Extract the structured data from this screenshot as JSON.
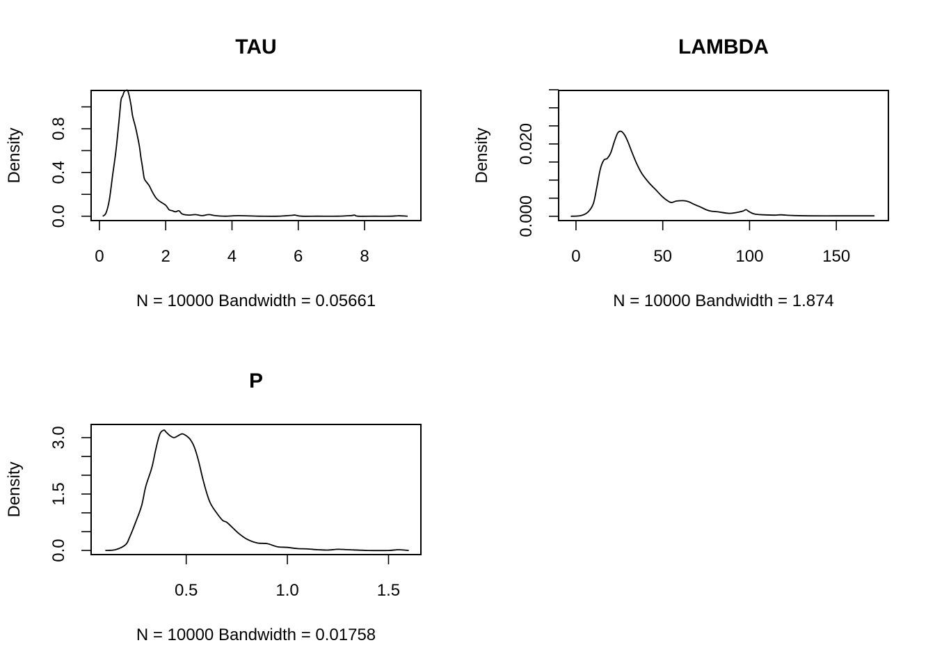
{
  "chart_data": [
    {
      "type": "line",
      "title": "TAU",
      "ylabel": "Density",
      "xlabel": "N = 10000   Bandwidth = 0.05661",
      "xlim": [
        -0.25,
        9.7
      ],
      "ylim": [
        -0.04,
        1.15
      ],
      "x_ticks": [
        0,
        2,
        4,
        6,
        8
      ],
      "x_tick_labels": [
        "0",
        "2",
        "4",
        "6",
        "8"
      ],
      "y_ticks": [
        0,
        0.2,
        0.4,
        0.6,
        0.8,
        1.0
      ],
      "y_tick_labels": [
        "0.0",
        "",
        "0.4",
        "",
        "0.8",
        ""
      ],
      "x_axis_range": [
        0,
        8
      ],
      "y_axis_range": [
        0,
        1.0
      ],
      "series": [
        {
          "x": [
            0.1,
            0.2,
            0.3,
            0.4,
            0.5,
            0.6,
            0.65,
            0.7,
            0.75,
            0.8,
            0.85,
            0.9,
            0.95,
            1.0,
            1.05,
            1.1,
            1.2,
            1.25,
            1.3,
            1.35,
            1.4,
            1.5,
            1.6,
            1.7,
            1.8,
            2.0,
            2.1,
            2.2,
            2.3,
            2.4,
            2.5,
            2.7,
            2.9,
            3.1,
            3.3,
            3.5,
            3.8,
            4.2,
            4.8,
            5.4,
            5.8,
            5.9,
            6.1,
            6.6,
            7.2,
            7.6,
            7.7,
            7.8,
            8.3,
            8.8,
            9.0,
            9.2,
            9.3
          ],
          "y": [
            0.0,
            0.03,
            0.15,
            0.38,
            0.6,
            0.9,
            1.06,
            1.1,
            1.14,
            1.15,
            1.15,
            1.1,
            1.02,
            0.92,
            0.86,
            0.8,
            0.65,
            0.54,
            0.45,
            0.35,
            0.32,
            0.28,
            0.22,
            0.17,
            0.14,
            0.1,
            0.06,
            0.05,
            0.04,
            0.05,
            0.02,
            0.01,
            0.015,
            0.005,
            0.015,
            0.005,
            0.0,
            0.005,
            0.0,
            0.0,
            0.008,
            0.01,
            0.0,
            0.0,
            0.0,
            0.006,
            0.01,
            0.0,
            0.0,
            0.0,
            0.004,
            0.002,
            0.0
          ]
        }
      ]
    },
    {
      "type": "line",
      "title": "LAMBDA",
      "ylabel": "Density",
      "xlabel": "N = 10000   Bandwidth = 1.874",
      "xlim": [
        -10,
        180
      ],
      "ylim": [
        -0.0012,
        0.0348
      ],
      "x_ticks": [
        0,
        50,
        100,
        150
      ],
      "x_tick_labels": [
        "0",
        "50",
        "100",
        "150"
      ],
      "y_ticks": [
        0,
        0.005,
        0.01,
        0.015,
        0.02,
        0.025,
        0.03,
        0.035
      ],
      "y_tick_labels": [
        "0.000",
        "",
        "",
        "",
        "0.020",
        "",
        "",
        ""
      ],
      "x_axis_range": [
        0,
        150
      ],
      "y_axis_range": [
        0,
        0.035
      ],
      "series": [
        {
          "x": [
            -3,
            3,
            7,
            10,
            12,
            14,
            16,
            18,
            20,
            22,
            24,
            26,
            28,
            30,
            32,
            35,
            38,
            42,
            46,
            50,
            53,
            55,
            58,
            62,
            65,
            68,
            70,
            72,
            75,
            78,
            82,
            88,
            92,
            96,
            98,
            100,
            103,
            108,
            115,
            118,
            125,
            135,
            150,
            165,
            172
          ],
          "y": [
            0.0,
            0.0002,
            0.0012,
            0.0035,
            0.008,
            0.013,
            0.0155,
            0.016,
            0.0175,
            0.0205,
            0.023,
            0.0235,
            0.0225,
            0.0205,
            0.018,
            0.0145,
            0.0118,
            0.0093,
            0.0073,
            0.0053,
            0.0042,
            0.0038,
            0.0042,
            0.0043,
            0.004,
            0.0033,
            0.0029,
            0.0025,
            0.0018,
            0.0014,
            0.0012,
            0.0008,
            0.001,
            0.0014,
            0.0018,
            0.0012,
            0.0006,
            0.0004,
            0.0003,
            0.0004,
            0.0002,
            0.0001,
            0.0001,
            0.0001,
            0.0001
          ]
        }
      ]
    },
    {
      "type": "line",
      "title": "P",
      "ylabel": "Density",
      "xlabel": "N = 10000   Bandwidth = 0.01758",
      "xlim": [
        0.03,
        1.66
      ],
      "ylim": [
        -0.11,
        3.35
      ],
      "x_ticks": [
        0.5,
        1.0,
        1.5
      ],
      "x_tick_labels": [
        "0.5",
        "1.0",
        "1.5"
      ],
      "y_ticks": [
        0,
        0.5,
        1.0,
        1.5,
        2.0,
        2.5,
        3.0
      ],
      "y_tick_labels": [
        "0.0",
        "",
        "",
        "1.5",
        "",
        "",
        "3.0"
      ],
      "x_axis_range": [
        0.5,
        1.5
      ],
      "y_axis_range": [
        0,
        3.0
      ],
      "series": [
        {
          "x": [
            0.1,
            0.15,
            0.2,
            0.22,
            0.25,
            0.28,
            0.3,
            0.33,
            0.35,
            0.37,
            0.39,
            0.4,
            0.42,
            0.44,
            0.46,
            0.48,
            0.5,
            0.52,
            0.54,
            0.56,
            0.58,
            0.6,
            0.62,
            0.65,
            0.68,
            0.7,
            0.73,
            0.76,
            0.8,
            0.85,
            0.9,
            0.95,
            1.0,
            1.05,
            1.1,
            1.15,
            1.2,
            1.25,
            1.3,
            1.4,
            1.5,
            1.55,
            1.6
          ],
          "y": [
            0.0,
            0.02,
            0.15,
            0.35,
            0.75,
            1.2,
            1.7,
            2.2,
            2.7,
            3.1,
            3.2,
            3.15,
            3.05,
            3.0,
            3.05,
            3.1,
            3.05,
            2.95,
            2.75,
            2.4,
            1.95,
            1.55,
            1.25,
            1.0,
            0.8,
            0.75,
            0.6,
            0.45,
            0.3,
            0.2,
            0.18,
            0.1,
            0.08,
            0.05,
            0.04,
            0.02,
            0.01,
            0.03,
            0.02,
            0.0,
            0.0,
            0.02,
            0.0
          ]
        }
      ]
    }
  ]
}
